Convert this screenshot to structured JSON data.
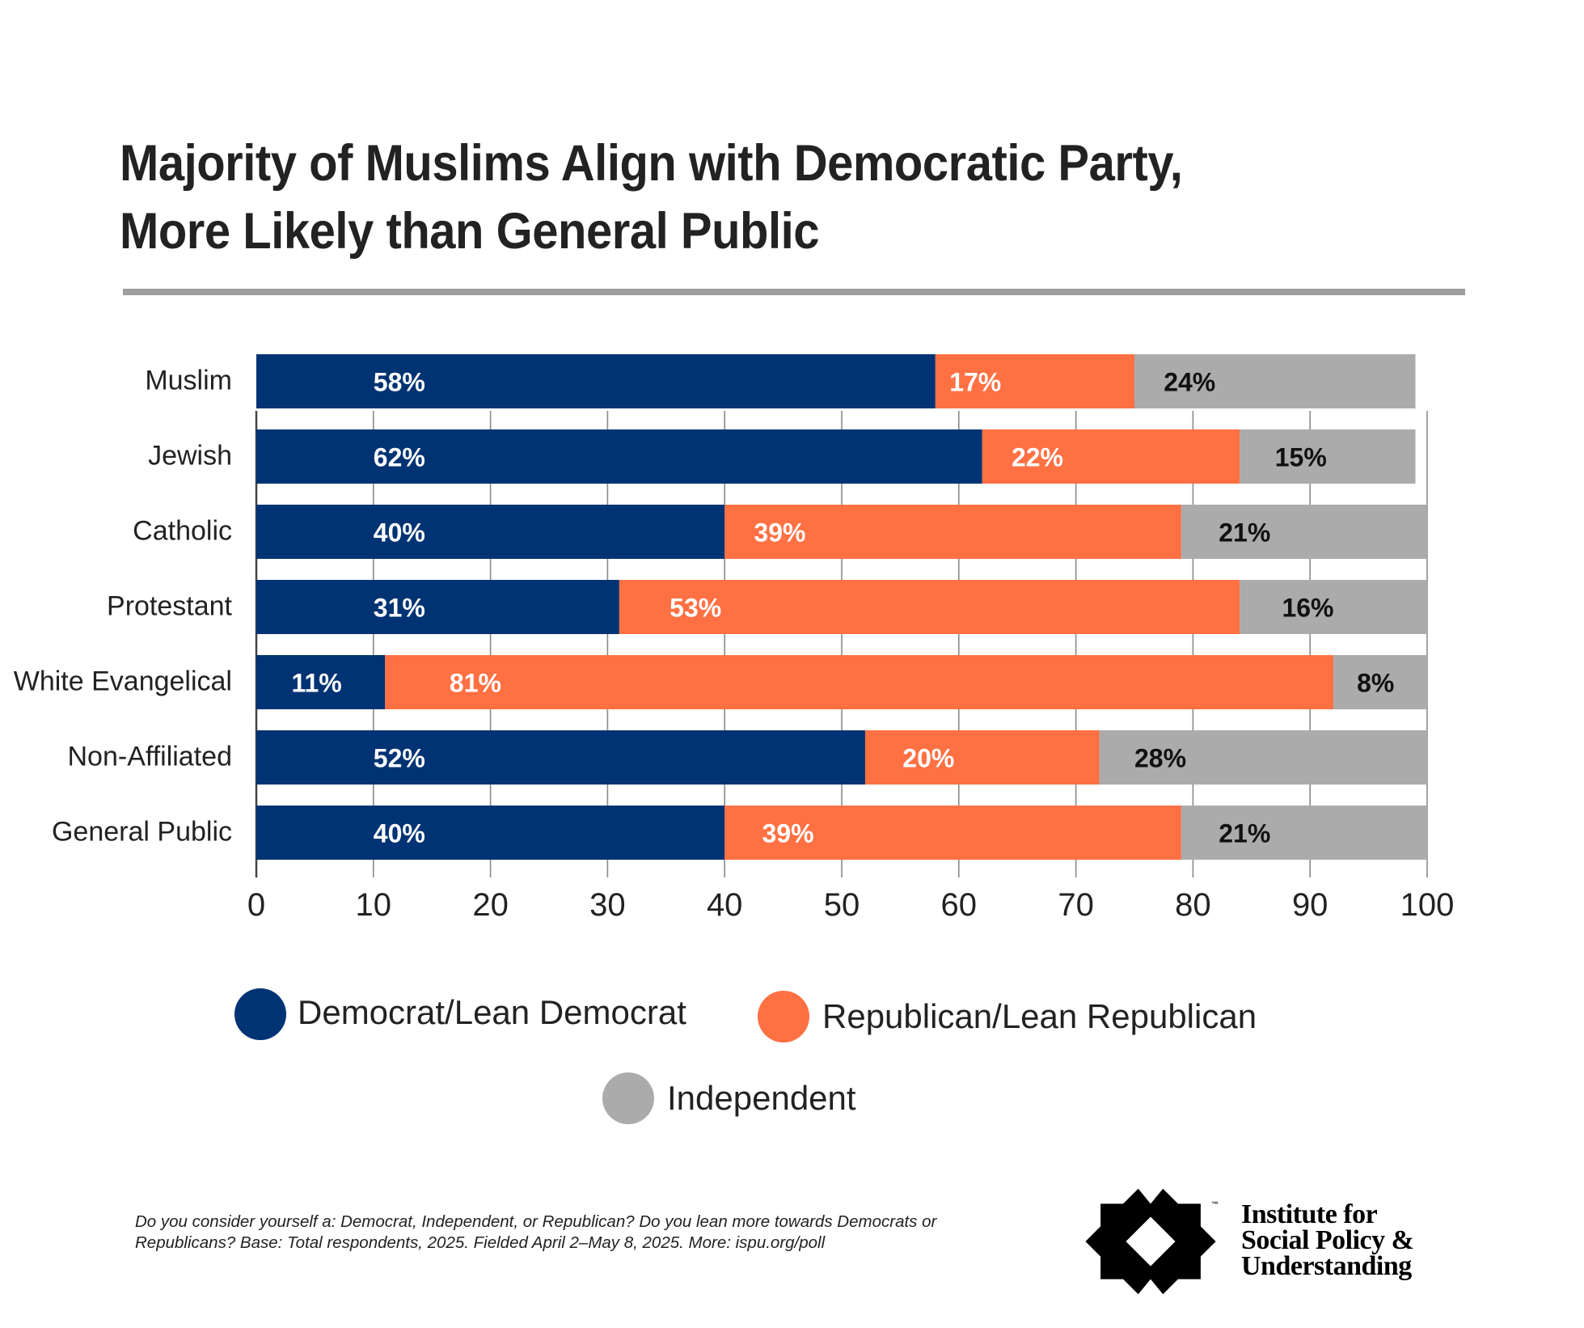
{
  "chart_data": {
    "type": "bar",
    "orientation": "horizontal",
    "stacked": true,
    "title": "Majority of Muslims Align with Democratic Party, More Likely than General Public",
    "title_lines": [
      "Majority of Muslims Align with Democratic Party,",
      "More Likely than General Public"
    ],
    "categories": [
      "Muslim",
      "Jewish",
      "Catholic",
      "Protestant",
      "White Evangelical",
      "Non-Affiliated",
      "General Public"
    ],
    "series": [
      {
        "name": "Democrat/Lean Democrat",
        "color": "#003373",
        "label_color": "#ffffff",
        "values": [
          58,
          62,
          40,
          31,
          11,
          52,
          40
        ]
      },
      {
        "name": "Republican/Lean Republican",
        "color": "#ff7043",
        "label_color": "#ffffff",
        "values": [
          17,
          22,
          39,
          53,
          81,
          20,
          39
        ]
      },
      {
        "name": "Independent",
        "color": "#ababab",
        "label_color": "#111111",
        "values": [
          24,
          15,
          21,
          16,
          8,
          28,
          21
        ]
      }
    ],
    "data_labels": [
      [
        "58%",
        "17%",
        "24%"
      ],
      [
        "62%",
        "22%",
        "15%"
      ],
      [
        "40%",
        "39%",
        "21%"
      ],
      [
        "31%",
        "53%",
        "16%"
      ],
      [
        "11%",
        "81%",
        "8%"
      ],
      [
        "52%",
        "20%",
        "28%"
      ],
      [
        "40%",
        "39%",
        "21%"
      ]
    ],
    "xlabel": "",
    "ylabel": "",
    "xlim": [
      0,
      100
    ],
    "xticks": [
      0,
      10,
      20,
      30,
      40,
      50,
      60,
      70,
      80,
      90,
      100
    ],
    "xtick_labels": [
      "0",
      "10",
      "20",
      "30",
      "40",
      "50",
      "60",
      "70",
      "80",
      "90",
      "100"
    ],
    "grid": true,
    "legend_position": "bottom"
  },
  "legend": [
    {
      "label": "Democrat/Lean Democrat",
      "color": "#003373"
    },
    {
      "label": "Republican/Lean Republican",
      "color": "#ff7043"
    },
    {
      "label": "Independent",
      "color": "#ababab"
    }
  ],
  "footer": {
    "note": "Do you consider yourself a: Democrat, Independent, or Republican? Do you lean more towards Democrats or Republicans? Base: Total respondents, 2025. Fielded April 2–May 8, 2025. More: ispu.org/poll"
  },
  "logo": {
    "lines": [
      "Institute for",
      "Social Policy &",
      "Understanding"
    ],
    "tm": "™"
  }
}
